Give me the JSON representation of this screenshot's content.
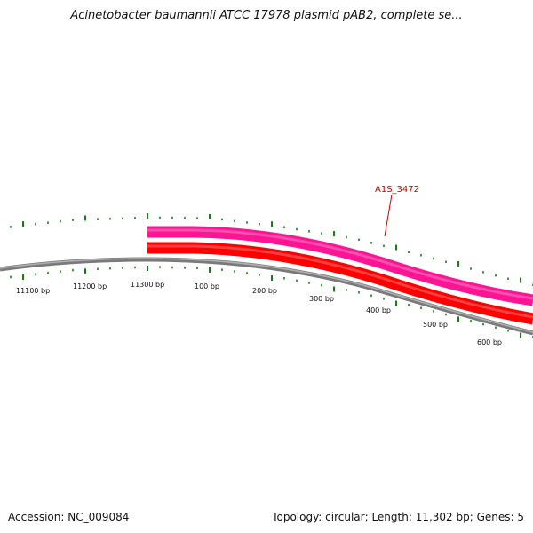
{
  "title": "Acinetobacter baumannii ATCC 17978 plasmid pAB2, complete se...",
  "footer": {
    "accession": "Accession: NC_009084",
    "summary": "Topology: circular; Length: 11,302 bp; Genes: 5"
  },
  "map": {
    "gene_label": "A1S_3472",
    "colors": {
      "backbone": "#888888",
      "gene_outer": "#ff1493",
      "gene_inner": "#ff0000",
      "ticks": "#1a7a1a",
      "label": "#cc0000"
    },
    "bp_labels": [
      "11100 bp",
      "11200 bp",
      "11300 bp",
      "100 bp",
      "200 bp",
      "300 bp",
      "400 bp",
      "500 bp",
      "600 bp"
    ]
  }
}
